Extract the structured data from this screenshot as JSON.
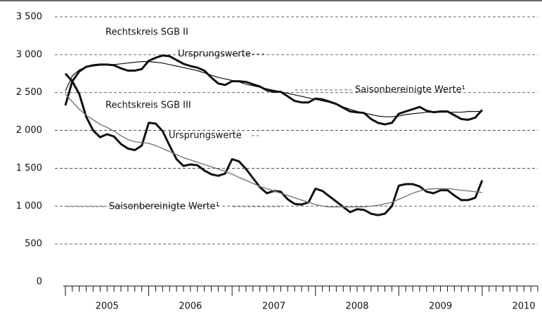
{
  "chart_data": {
    "type": "line",
    "ylim": [
      0,
      3500
    ],
    "yticks": [
      0,
      500,
      {
        "value": 1000,
        "label": "1 000"
      },
      {
        "value": 1500,
        "label": "1 500"
      },
      {
        "value": 2000,
        "label": "2 000"
      },
      {
        "value": 2500,
        "label": "2 500"
      },
      {
        "value": 3000,
        "label": "3 000"
      },
      {
        "value": 3500,
        "label": "3 500"
      }
    ],
    "grid": true,
    "xlim": [
      2005,
      2010.667
    ],
    "categories": [
      "2005",
      "2006",
      "2007",
      "2008",
      "2009",
      "2010"
    ],
    "x": [
      2005,
      2005.083,
      2005.167,
      2005.25,
      2005.333,
      2005.417,
      2005.5,
      2005.583,
      2005.667,
      2005.75,
      2005.833,
      2005.917,
      2006,
      2006.083,
      2006.167,
      2006.25,
      2006.333,
      2006.417,
      2006.5,
      2006.583,
      2006.667,
      2006.75,
      2006.833,
      2006.917,
      2007,
      2007.083,
      2007.167,
      2007.25,
      2007.333,
      2007.417,
      2007.5,
      2007.583,
      2007.667,
      2007.75,
      2007.833,
      2007.917,
      2008,
      2008.083,
      2008.167,
      2008.25,
      2008.333,
      2008.417,
      2008.5,
      2008.583,
      2008.667,
      2008.75,
      2008.833,
      2008.917,
      2009,
      2009.083,
      2009.167,
      2009.25,
      2009.333,
      2009.417,
      2009.5,
      2009.583,
      2009.667,
      2009.75,
      2009.833,
      2009.917,
      2010
    ],
    "series": [
      {
        "color": "#111111",
        "width": 3,
        "values": [
          2330,
          2650,
          2780,
          2840,
          2860,
          2870,
          2870,
          2860,
          2820,
          2790,
          2790,
          2810,
          2920,
          2960,
          2990,
          2980,
          2930,
          2880,
          2850,
          2830,
          2790,
          2700,
          2620,
          2600,
          2650,
          2650,
          2640,
          2610,
          2580,
          2530,
          2510,
          2510,
          2450,
          2390,
          2370,
          2370,
          2420,
          2410,
          2380,
          2350,
          2300,
          2250,
          2240,
          2230,
          2150,
          2100,
          2080,
          2100,
          2220,
          2250,
          2280,
          2310,
          2260,
          2240,
          2250,
          2250,
          2200,
          2150,
          2140,
          2170,
          2270
        ]
      },
      {
        "color": "#111111",
        "width": 1.2,
        "values": [
          2520,
          2720,
          2800,
          2840,
          2850,
          2860,
          2870,
          2870,
          2880,
          2890,
          2900,
          2910,
          2910,
          2900,
          2890,
          2870,
          2850,
          2830,
          2810,
          2790,
          2760,
          2730,
          2700,
          2680,
          2660,
          2640,
          2610,
          2590,
          2570,
          2550,
          2530,
          2510,
          2490,
          2470,
          2450,
          2430,
          2410,
          2390,
          2370,
          2340,
          2310,
          2280,
          2250,
          2230,
          2210,
          2190,
          2180,
          2180,
          2190,
          2210,
          2220,
          2230,
          2240,
          2240,
          2240,
          2240,
          2240,
          2240,
          2250,
          2250,
          2250
        ]
      },
      {
        "color": "#111111",
        "width": 3,
        "values": [
          2750,
          2650,
          2480,
          2180,
          2000,
          1910,
          1950,
          1920,
          1820,
          1760,
          1740,
          1800,
          2100,
          2090,
          1990,
          1800,
          1620,
          1530,
          1550,
          1540,
          1470,
          1420,
          1400,
          1430,
          1620,
          1590,
          1490,
          1370,
          1250,
          1170,
          1200,
          1190,
          1090,
          1030,
          1020,
          1050,
          1230,
          1200,
          1130,
          1060,
          990,
          920,
          960,
          950,
          900,
          880,
          900,
          1000,
          1270,
          1290,
          1290,
          1260,
          1190,
          1170,
          1210,
          1210,
          1140,
          1080,
          1080,
          1110,
          1340
        ]
      },
      {
        "color": "#777777",
        "width": 1.4,
        "values": [
          2480,
          2380,
          2280,
          2200,
          2140,
          2080,
          2040,
          1990,
          1930,
          1880,
          1850,
          1840,
          1830,
          1800,
          1760,
          1720,
          1680,
          1640,
          1610,
          1580,
          1550,
          1520,
          1490,
          1460,
          1420,
          1380,
          1340,
          1300,
          1260,
          1230,
          1200,
          1170,
          1140,
          1110,
          1080,
          1050,
          1020,
          1000,
          990,
          990,
          990,
          990,
          990,
          990,
          1000,
          1010,
          1030,
          1050,
          1090,
          1130,
          1170,
          1200,
          1220,
          1230,
          1230,
          1230,
          1220,
          1210,
          1200,
          1190,
          1180
        ]
      }
    ],
    "annotations": [
      "Rechtskreis SGB II",
      "Ursprungswerte",
      "Saisonbereinigte Werte¹",
      "Rechtskreis SGB III",
      "Ursprungswerte",
      "Saisonbereinigte Werte¹"
    ]
  }
}
